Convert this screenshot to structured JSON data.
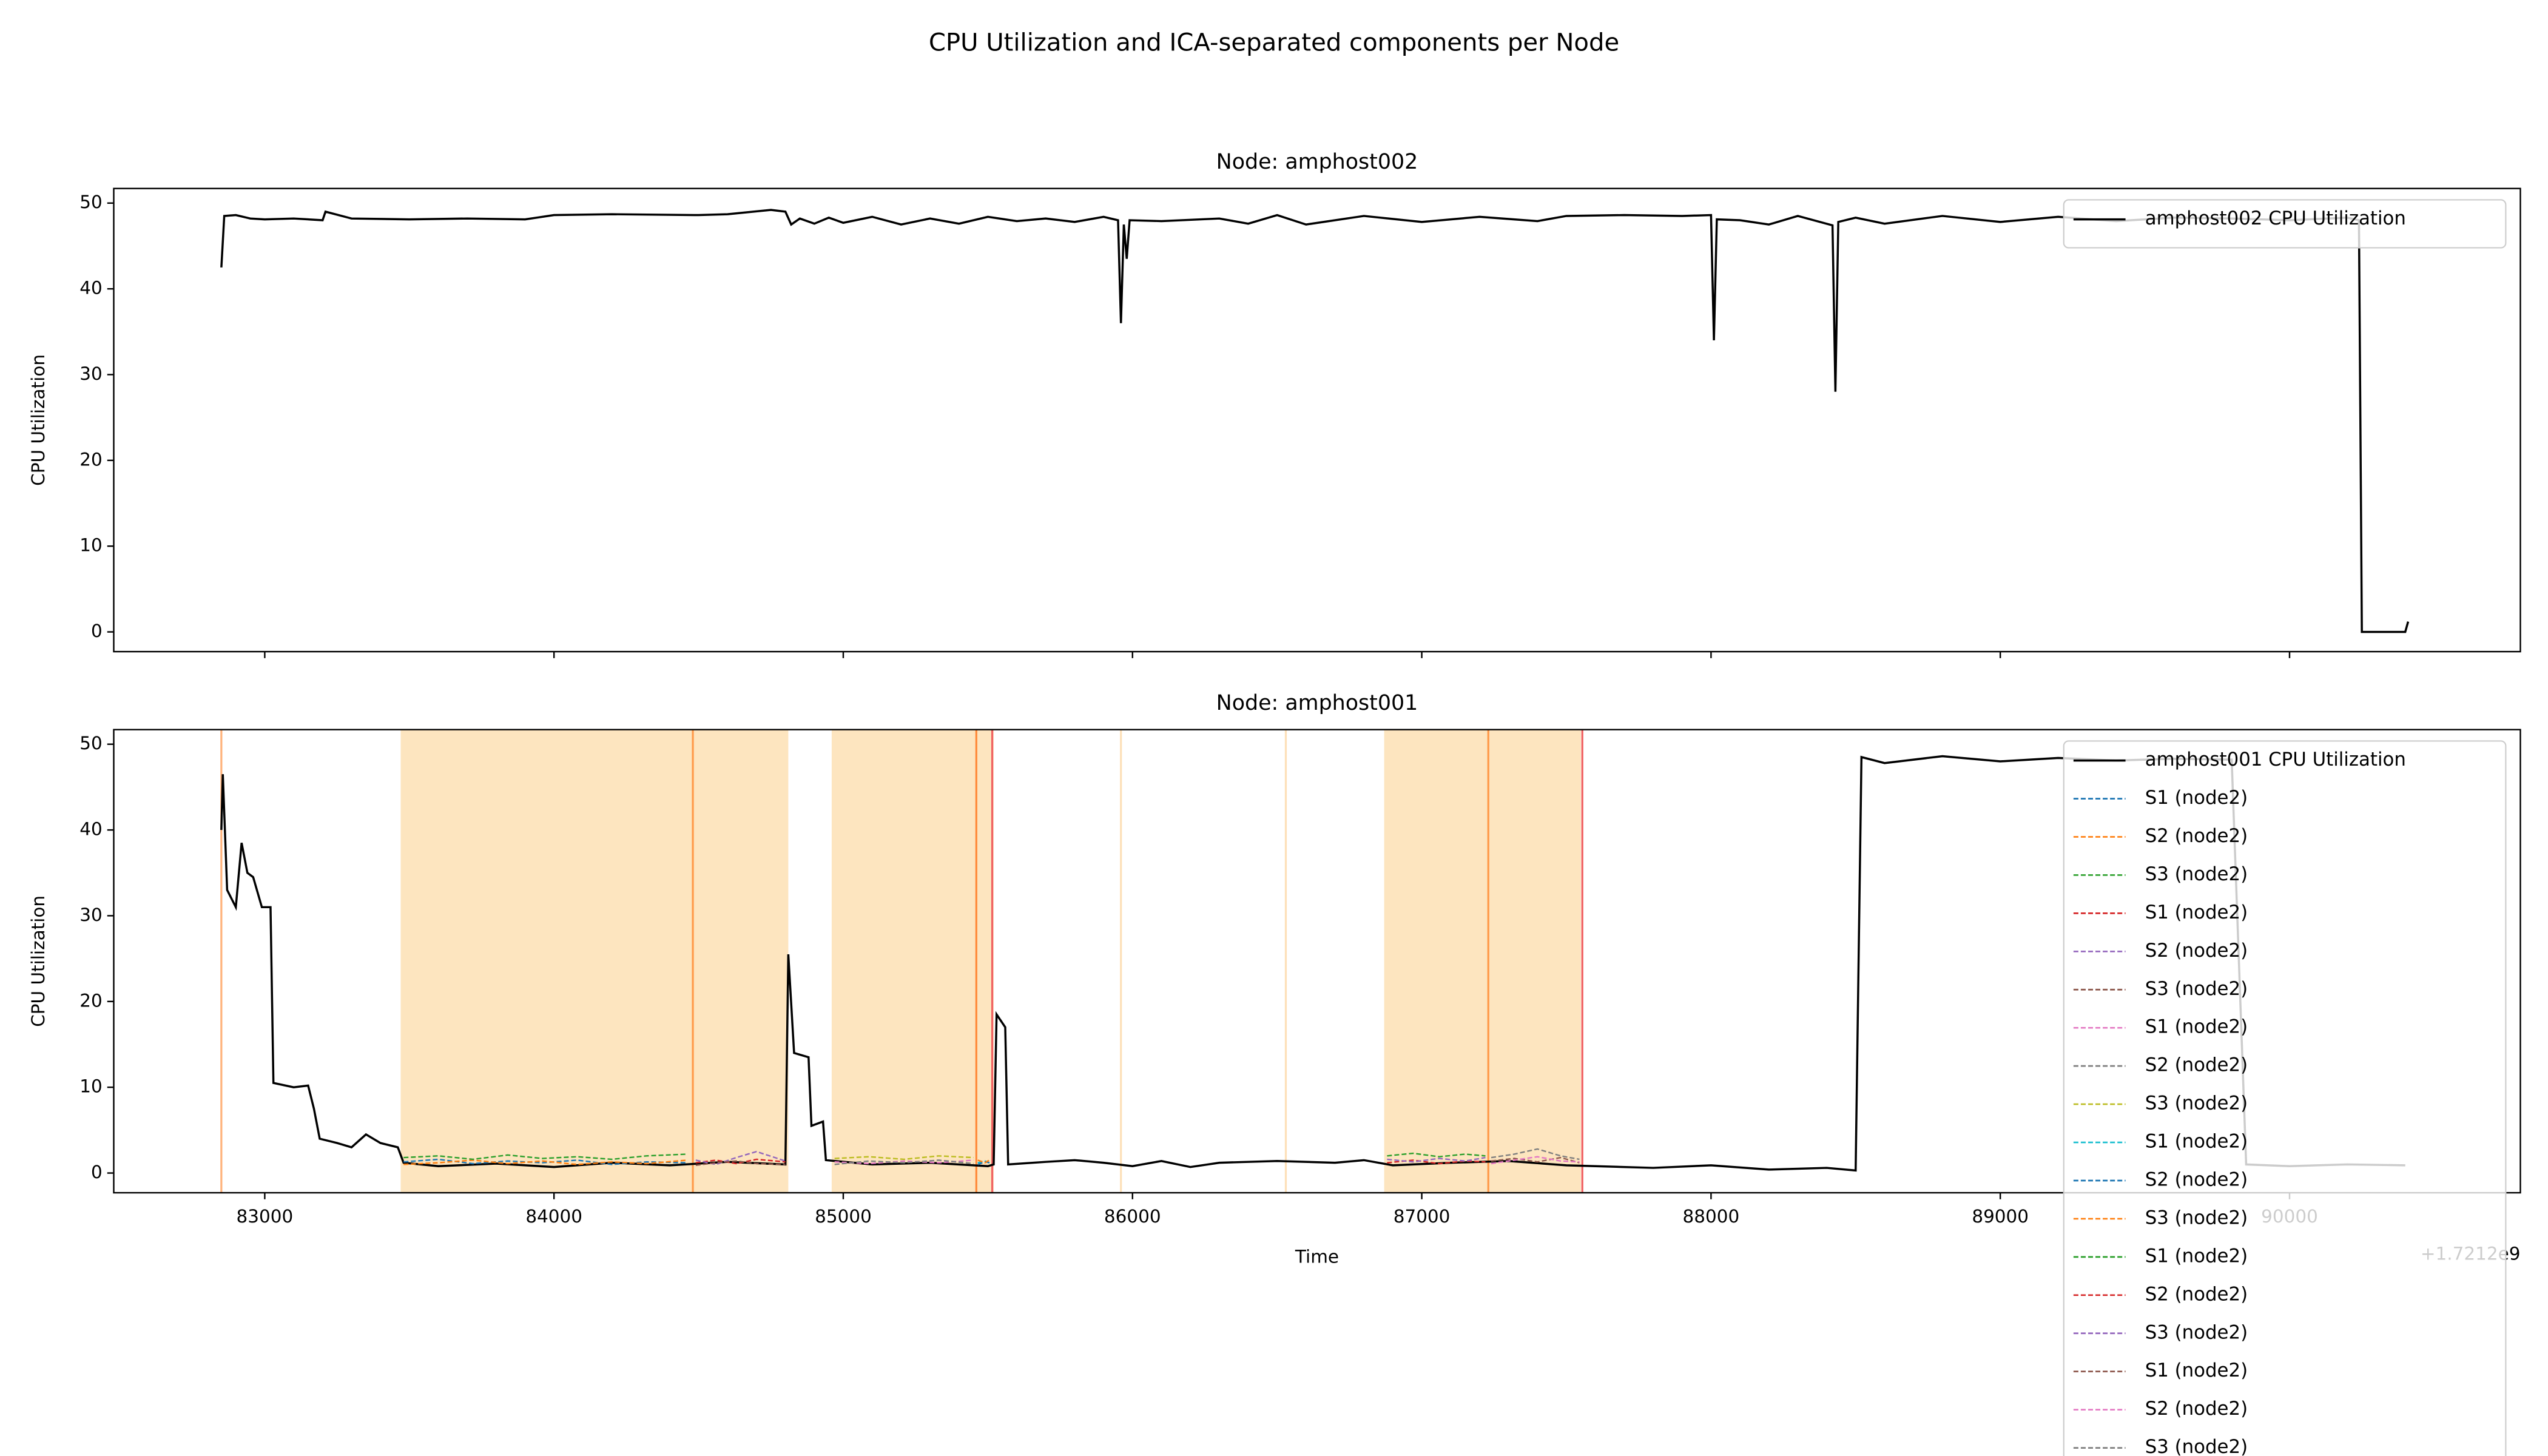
{
  "title": "CPU Utilization and ICA-separated components per Node",
  "chart_data": [
    {
      "type": "line",
      "title": "Node: amphost002",
      "ylabel": "CPU Utilization",
      "xlim": [
        82478,
        90798
      ],
      "ylim": [
        -2.3,
        51.7
      ],
      "xticks": [
        83000,
        84000,
        85000,
        86000,
        87000,
        88000,
        89000,
        90000
      ],
      "xtick_labels": false,
      "yticks": [
        0,
        10,
        20,
        30,
        40,
        50
      ],
      "legend": "upper right",
      "series": [
        {
          "name": "amphost002 CPU Utilization",
          "color": "#000000",
          "linestyle": "solid",
          "x": [
            82850,
            82860,
            82900,
            82950,
            83000,
            83100,
            83200,
            83210,
            83300,
            83500,
            83700,
            83900,
            84000,
            84200,
            84500,
            84600,
            84750,
            84800,
            84820,
            84850,
            84900,
            84950,
            85000,
            85100,
            85200,
            85300,
            85400,
            85500,
            85600,
            85700,
            85800,
            85900,
            85950,
            85960,
            85970,
            85980,
            85990,
            86100,
            86300,
            86400,
            86500,
            86600,
            86800,
            87000,
            87200,
            87400,
            87500,
            87700,
            87900,
            88000,
            88010,
            88020,
            88100,
            88200,
            88300,
            88420,
            88430,
            88440,
            88500,
            88600,
            88800,
            89000,
            89200,
            89400,
            89600,
            89800,
            90000,
            90200,
            90240,
            90250,
            90400,
            90410
          ],
          "values": [
            42.5,
            48.5,
            48.6,
            48.2,
            48.1,
            48.2,
            48,
            49,
            48.2,
            48.1,
            48.2,
            48.1,
            48.6,
            48.7,
            48.6,
            48.7,
            49.2,
            49,
            47.5,
            48.2,
            47.6,
            48.3,
            47.7,
            48.4,
            47.5,
            48.2,
            47.6,
            48.4,
            47.9,
            48.2,
            47.8,
            48.4,
            48,
            36,
            47.5,
            43.5,
            48,
            47.9,
            48.2,
            47.6,
            48.6,
            47.5,
            48.5,
            47.8,
            48.4,
            47.9,
            48.5,
            48.6,
            48.5,
            48.6,
            34,
            48.1,
            48,
            47.5,
            48.5,
            47.4,
            28,
            47.8,
            48.3,
            47.6,
            48.5,
            47.8,
            48.4,
            47.9,
            48.3,
            48.2,
            48,
            48.3,
            48,
            0,
            0,
            1.2
          ]
        }
      ]
    },
    {
      "type": "line",
      "title": "Node: amphost001",
      "ylabel": "CPU Utilization",
      "xlabel": "Time",
      "offset_text": "+1.7212e9",
      "xlim": [
        82478,
        90798
      ],
      "ylim": [
        -2.3,
        51.7
      ],
      "xticks": [
        83000,
        84000,
        85000,
        86000,
        87000,
        88000,
        89000,
        90000
      ],
      "xtick_labels": true,
      "yticks": [
        0,
        10,
        20,
        30,
        40,
        50
      ],
      "legend": "upper right",
      "spans": [
        {
          "start": 83470,
          "end": 84810,
          "color": "#fde5bf"
        },
        {
          "start": 84960,
          "end": 85520,
          "color": "#fde5bf"
        },
        {
          "start": 86870,
          "end": 87550,
          "color": "#fde5bf"
        }
      ],
      "vlines": [
        {
          "x": 82850,
          "color": "#ffb27a"
        },
        {
          "x": 84480,
          "color": "#ff9a4a"
        },
        {
          "x": 85460,
          "color": "#ff8a3a"
        },
        {
          "x": 85515,
          "color": "#f06060"
        },
        {
          "x": 85960,
          "color": "#fde0b8"
        },
        {
          "x": 86530,
          "color": "#fde0b8"
        },
        {
          "x": 87230,
          "color": "#ff9a4a"
        },
        {
          "x": 87555,
          "color": "#f06060"
        }
      ],
      "series": [
        {
          "name": "amphost001 CPU Utilization",
          "color": "#000000",
          "linestyle": "solid",
          "x": [
            82850,
            82855,
            82870,
            82900,
            82920,
            82940,
            82960,
            82990,
            83020,
            83030,
            83100,
            83150,
            83170,
            83190,
            83250,
            83300,
            83350,
            83400,
            83460,
            83480,
            83600,
            83800,
            84000,
            84200,
            84400,
            84600,
            84800,
            84810,
            84830,
            84880,
            84890,
            84930,
            84940,
            85100,
            85300,
            85500,
            85520,
            85530,
            85560,
            85570,
            85700,
            85800,
            85900,
            86000,
            86100,
            86200,
            86300,
            86500,
            86700,
            86800,
            86900,
            87100,
            87300,
            87500,
            87600,
            87800,
            88000,
            88200,
            88400,
            88500,
            88520,
            88600,
            88800,
            89000,
            89200,
            89400,
            89600,
            89800,
            89850,
            90000,
            90200,
            90400
          ],
          "values": [
            40,
            46.5,
            33,
            31,
            38.5,
            35,
            34.5,
            31,
            31,
            10.5,
            10,
            10.2,
            7.5,
            4,
            3.5,
            3,
            4.5,
            3.5,
            3,
            1.2,
            0.8,
            1.1,
            0.7,
            1.2,
            0.9,
            1.3,
            1,
            25.5,
            14,
            13.5,
            5.5,
            6,
            1.5,
            1,
            1.2,
            0.8,
            1,
            18.5,
            17,
            1,
            1.3,
            1.5,
            1.2,
            0.8,
            1.4,
            0.7,
            1.2,
            1.4,
            1.2,
            1.5,
            0.9,
            1.2,
            1.4,
            0.9,
            0.8,
            0.6,
            0.9,
            0.4,
            0.6,
            0.3,
            48.5,
            47.8,
            48.6,
            48,
            48.4,
            48.1,
            48.3,
            48.2,
            1,
            0.8,
            1,
            0.9
          ]
        },
        {
          "name": "S1 (node2)",
          "color": "#1f77b4",
          "linestyle": "dashed",
          "x": [
            83480,
            83600,
            83720,
            83840,
            83960,
            84080,
            84200,
            84320,
            84460
          ],
          "values": [
            1.3,
            1.6,
            1.1,
            1.4,
            1.2,
            1.5,
            1.0,
            1.3,
            1.2
          ]
        },
        {
          "name": "S2 (node2)",
          "color": "#ff7f0e",
          "linestyle": "dashed",
          "x": [
            83480,
            83600,
            83720,
            83840,
            83960,
            84080,
            84200,
            84320,
            84460
          ],
          "values": [
            1.0,
            1.2,
            1.5,
            1.1,
            1.4,
            1.0,
            1.3,
            1.1,
            1.5
          ]
        },
        {
          "name": "S3 (node2)",
          "color": "#2ca02c",
          "linestyle": "dashed",
          "x": [
            83480,
            83600,
            83720,
            83840,
            83960,
            84080,
            84200,
            84320,
            84460
          ],
          "values": [
            1.8,
            2.0,
            1.6,
            2.1,
            1.7,
            1.9,
            1.6,
            2.0,
            2.2
          ]
        },
        {
          "name": "S1 (node2)",
          "color": "#d62728",
          "linestyle": "dashed",
          "x": [
            84490,
            84560,
            84630,
            84700,
            84800
          ],
          "values": [
            1.2,
            1.5,
            1.1,
            1.6,
            1.3
          ]
        },
        {
          "name": "S2 (node2)",
          "color": "#9467bd",
          "linestyle": "dashed",
          "x": [
            84490,
            84560,
            84630,
            84700,
            84800
          ],
          "values": [
            1.5,
            1.0,
            1.8,
            2.5,
            1.4
          ]
        },
        {
          "name": "S3 (node2)",
          "color": "#8c564b",
          "linestyle": "dashed",
          "x": [
            84490,
            84560,
            84630,
            84700,
            84800
          ],
          "values": [
            0.9,
            1.2,
            1.4,
            1.1,
            1.0
          ]
        },
        {
          "name": "S1 (node2)",
          "color": "#e377c2",
          "linestyle": "dashed",
          "x": [
            84970,
            85090,
            85210,
            85330,
            85450
          ],
          "values": [
            1.3,
            1.1,
            1.4,
            1.2,
            1.5
          ]
        },
        {
          "name": "S2 (node2)",
          "color": "#7f7f7f",
          "linestyle": "dashed",
          "x": [
            84970,
            85090,
            85210,
            85330,
            85450
          ],
          "values": [
            1.0,
            1.4,
            1.2,
            1.5,
            1.1
          ]
        },
        {
          "name": "S3 (node2)",
          "color": "#bcbd22",
          "linestyle": "dashed",
          "x": [
            84970,
            85090,
            85210,
            85330,
            85450
          ],
          "values": [
            1.7,
            1.9,
            1.6,
            2.0,
            1.8
          ]
        },
        {
          "name": "S1 (node2)",
          "color": "#17becf",
          "linestyle": "dashed",
          "x": [
            85465,
            85490,
            85510
          ],
          "values": [
            1.2,
            1.4,
            1.1
          ]
        },
        {
          "name": "S2 (node2)",
          "color": "#1f77b4",
          "linestyle": "dashed",
          "x": [
            85465,
            85490,
            85510
          ],
          "values": [
            1.0,
            1.3,
            1.2
          ]
        },
        {
          "name": "S3 (node2)",
          "color": "#ff7f0e",
          "linestyle": "dashed",
          "x": [
            85465,
            85490,
            85510
          ],
          "values": [
            1.5,
            1.2,
            1.6
          ]
        },
        {
          "name": "S1 (node2)",
          "color": "#2ca02c",
          "linestyle": "dashed",
          "x": [
            86880,
            86970,
            87060,
            87150,
            87220
          ],
          "values": [
            2.0,
            2.3,
            1.9,
            2.2,
            2.0
          ]
        },
        {
          "name": "S2 (node2)",
          "color": "#d62728",
          "linestyle": "dashed",
          "x": [
            86880,
            86970,
            87060,
            87150,
            87220
          ],
          "values": [
            1.2,
            1.5,
            1.1,
            1.4,
            1.3
          ]
        },
        {
          "name": "S3 (node2)",
          "color": "#9467bd",
          "linestyle": "dashed",
          "x": [
            86880,
            86970,
            87060,
            87150,
            87220
          ],
          "values": [
            1.6,
            1.3,
            1.7,
            1.4,
            1.8
          ]
        },
        {
          "name": "S1 (node2)",
          "color": "#8c564b",
          "linestyle": "dashed",
          "x": [
            87240,
            87320,
            87400,
            87480,
            87545
          ],
          "values": [
            1.4,
            1.7,
            1.3,
            1.8,
            1.2
          ]
        },
        {
          "name": "S2 (node2)",
          "color": "#e377c2",
          "linestyle": "dashed",
          "x": [
            87240,
            87320,
            87400,
            87480,
            87545
          ],
          "values": [
            1.1,
            1.5,
            1.9,
            1.4,
            1.3
          ]
        },
        {
          "name": "S3 (node2)",
          "color": "#7f7f7f",
          "linestyle": "dashed",
          "x": [
            87240,
            87320,
            87400,
            87480,
            87545
          ],
          "values": [
            1.8,
            2.2,
            2.8,
            2.0,
            1.6
          ]
        }
      ]
    }
  ]
}
